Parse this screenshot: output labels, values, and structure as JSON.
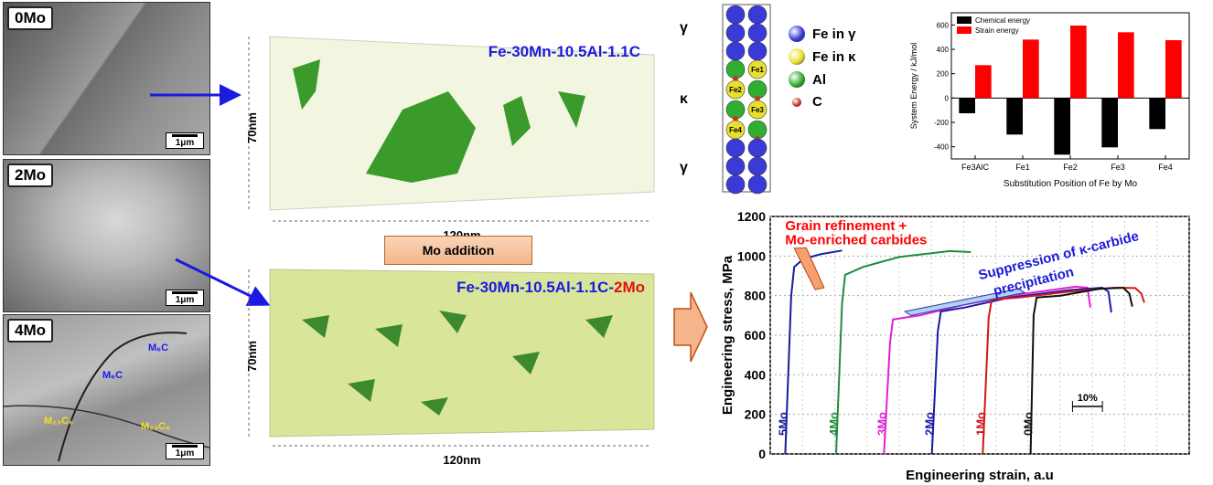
{
  "tem_panels": [
    {
      "label": "0Mo",
      "scale": "1μm"
    },
    {
      "label": "2Mo",
      "scale": "1μm"
    },
    {
      "label": "4Mo",
      "scale": "1μm",
      "annotations": [
        "M₆C",
        "M₆C",
        "M₂₃C₆",
        "M₂₃C₆"
      ]
    }
  ],
  "apt": {
    "top_title": "Fe-30Mn-10.5Al-1.1C",
    "bottom_title_base": "Fe-30Mn-10.5Al-1.1C-",
    "bottom_title_suffix": "2Mo",
    "height_label": "70nm",
    "width_label": "120nm",
    "arrow_label": "Mo addition"
  },
  "crystal": {
    "layers": [
      "γ",
      "κ",
      "γ"
    ],
    "atom_labels": [
      "Fe1",
      "Fe2",
      "Fe3",
      "Fe4"
    ],
    "legend": [
      {
        "label": "Fe in γ",
        "color": "#3a3ad8"
      },
      {
        "label": "Fe in κ",
        "color": "#e8e030"
      },
      {
        "label": "Al",
        "color": "#2fae2f"
      },
      {
        "label": "C",
        "color": "#c8322a"
      }
    ]
  },
  "chart_data": [
    {
      "type": "bar",
      "categories": [
        "Fe3AlC",
        "Fe1",
        "Fe2",
        "Fe3",
        "Fe4"
      ],
      "series": [
        {
          "name": "Chemical energy",
          "color": "#000000",
          "values": [
            -125,
            -300,
            -465,
            -405,
            -255
          ]
        },
        {
          "name": "Strain energy",
          "color": "#ff0000",
          "values": [
            270,
            480,
            595,
            540,
            475
          ]
        }
      ],
      "xlabel": "Substitution Position of Fe by Mo",
      "ylabel": "System Energy / kJ/mol",
      "ylim": [
        -500,
        700
      ],
      "yticks": [
        -400,
        -200,
        0,
        200,
        400,
        600
      ],
      "legend": "top-left"
    },
    {
      "type": "line",
      "xlabel": "Engineering strain, a.u",
      "ylabel": "Engineering stress, MPa",
      "ylim": [
        0,
        1200
      ],
      "yticks": [
        0,
        200,
        400,
        600,
        800,
        1000,
        1200
      ],
      "scale_label": "10%",
      "series": [
        {
          "name": "5Mo",
          "color": "#1a1a9a",
          "points": [
            [
              0,
              0
            ],
            [
              2,
              800
            ],
            [
              3,
              945
            ],
            [
              6,
              985
            ],
            [
              12,
              1010
            ],
            [
              19,
              1028
            ]
          ]
        },
        {
          "name": "4Mo",
          "color": "#1e8c3a",
          "points": [
            [
              17,
              0
            ],
            [
              19,
              760
            ],
            [
              20,
              905
            ],
            [
              26,
              945
            ],
            [
              38,
              995
            ],
            [
              55,
              1025
            ],
            [
              62,
              1020
            ]
          ]
        },
        {
          "name": "3Mo",
          "color": "#e020d8",
          "points": [
            [
              33,
              0
            ],
            [
              35,
              560
            ],
            [
              36,
              680
            ],
            [
              45,
              700
            ],
            [
              60,
              755
            ],
            [
              80,
              810
            ],
            [
              97,
              845
            ],
            [
              101,
              840
            ],
            [
              102,
              740
            ]
          ]
        },
        {
          "name": "2Mo",
          "color": "#1a1aa8",
          "points": [
            [
              49,
              0
            ],
            [
              51,
              620
            ],
            [
              52,
              720
            ],
            [
              60,
              740
            ],
            [
              75,
              790
            ],
            [
              95,
              828
            ],
            [
              106,
              840
            ],
            [
              108,
              820
            ],
            [
              109,
              715
            ]
          ]
        },
        {
          "name": "1Mo",
          "color": "#d01818",
          "points": [
            [
              66,
              0
            ],
            [
              68,
              690
            ],
            [
              69,
              780
            ],
            [
              78,
              790
            ],
            [
              95,
              820
            ],
            [
              110,
              840
            ],
            [
              117,
              838
            ],
            [
              119,
              810
            ],
            [
              120,
              765
            ]
          ]
        },
        {
          "name": "0Mo",
          "color": "#111111",
          "points": [
            [
              82,
              0
            ],
            [
              83,
              700
            ],
            [
              84,
              790
            ],
            [
              92,
              800
            ],
            [
              105,
              835
            ],
            [
              113,
              840
            ],
            [
              115,
              810
            ],
            [
              116,
              745
            ]
          ]
        }
      ],
      "annotations": [
        {
          "text_line1": "Grain refinement +",
          "text_line2": "Mo-enriched carbides",
          "color": "#ff0000"
        },
        {
          "text_line1": "Suppression of κ-carbide",
          "text_line2": "precipitation",
          "color": "#1a1ad8"
        }
      ]
    }
  ]
}
